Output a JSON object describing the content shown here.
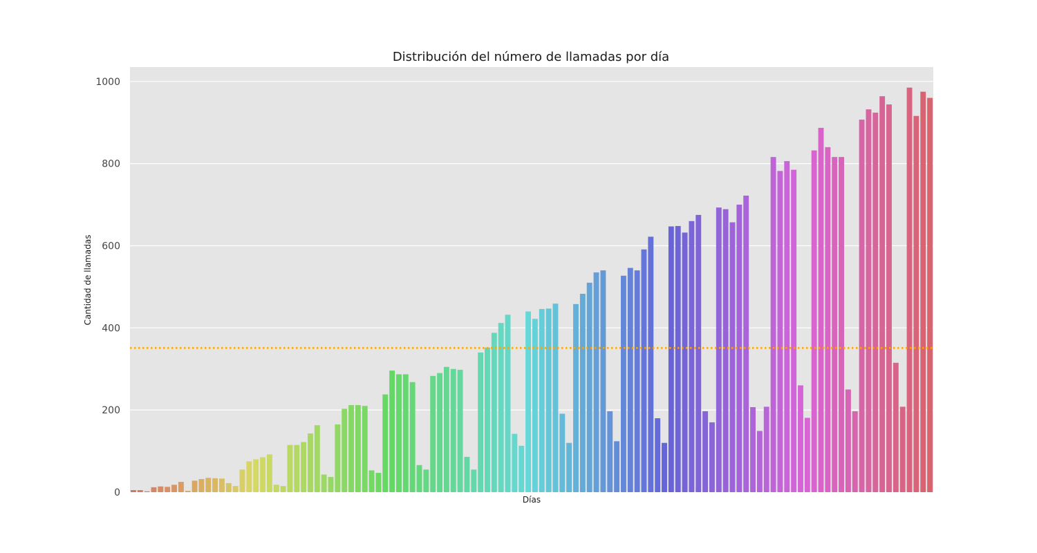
{
  "chart_data": {
    "type": "bar",
    "title": "Distribución del número de llamadas por día",
    "xlabel": "Días",
    "ylabel": "Cantidad de llamadas",
    "ylim": [
      0,
      1035
    ],
    "yticks": [
      0,
      200,
      400,
      600,
      800,
      1000
    ],
    "grid": true,
    "background": "#e5e5e5",
    "reference_line": {
      "y": 351,
      "color": "#ffa500",
      "style": "dotted"
    },
    "values": [
      5,
      5,
      2,
      12,
      14,
      13,
      18,
      25,
      3,
      28,
      32,
      35,
      34,
      33,
      22,
      15,
      55,
      75,
      80,
      85,
      92,
      18,
      15,
      115,
      115,
      122,
      143,
      163,
      43,
      37,
      165,
      203,
      212,
      212,
      210,
      53,
      47,
      238,
      296,
      287,
      287,
      268,
      66,
      55,
      283,
      290,
      305,
      300,
      298,
      86,
      55,
      340,
      352,
      388,
      412,
      432,
      142,
      113,
      440,
      422,
      446,
      447,
      459,
      191,
      120,
      458,
      483,
      510,
      535,
      540,
      197,
      124,
      527,
      546,
      540,
      591,
      622,
      180,
      120,
      647,
      648,
      632,
      660,
      675,
      197,
      170,
      693,
      689,
      657,
      700,
      722,
      207,
      149,
      208,
      816,
      782,
      806,
      785,
      260,
      181,
      832,
      887,
      840,
      816,
      816,
      250,
      197,
      907,
      932,
      924,
      964,
      944,
      315,
      208,
      985,
      916,
      975,
      960
    ]
  }
}
